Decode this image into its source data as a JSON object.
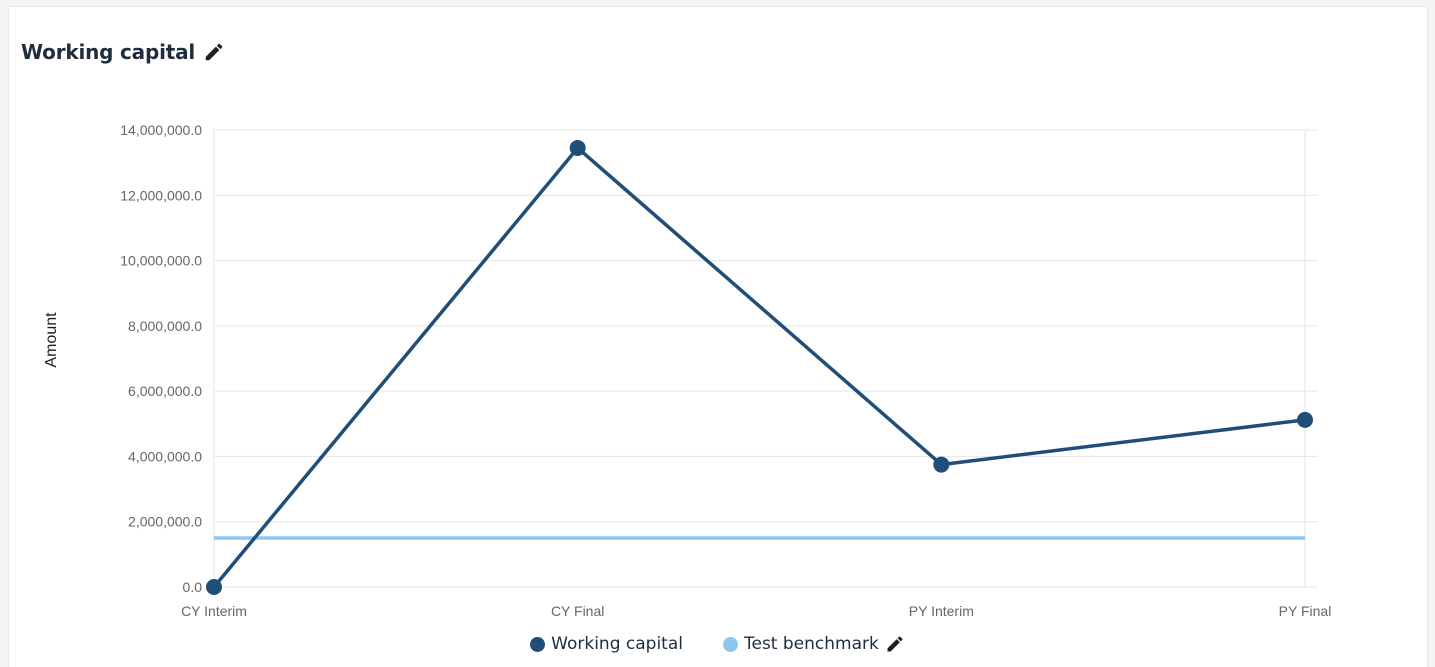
{
  "card": {
    "title": "Working capital",
    "edit_icon": "pencil-icon"
  },
  "legend": {
    "items": [
      {
        "label": "Working capital",
        "color": "#1f4e79"
      },
      {
        "label": "Test benchmark",
        "color": "#8ec6ef",
        "edit_icon": "pencil-icon"
      }
    ]
  },
  "chart_data": {
    "type": "line",
    "categories": [
      "CY Interim",
      "CY Final",
      "PY Interim",
      "PY Final"
    ],
    "series": [
      {
        "name": "Working capital",
        "color": "#1f4e79",
        "values": [
          0,
          13450000,
          3750000,
          5120000
        ]
      },
      {
        "name": "Test benchmark",
        "color": "#8ec6ef",
        "values": [
          1500000,
          1500000,
          1500000,
          1500000
        ]
      }
    ],
    "ylabel": "Amount",
    "xlabel": "",
    "ylim": [
      0,
      14000000
    ],
    "yticks": [
      0,
      2000000,
      4000000,
      6000000,
      8000000,
      10000000,
      12000000,
      14000000
    ],
    "ytick_labels": [
      "0.0",
      "2,000,000.0",
      "4,000,000.0",
      "6,000,000.0",
      "8,000,000.0",
      "10,000,000.0",
      "12,000,000.0",
      "14,000,000.0"
    ],
    "grid": true,
    "legend_position": "bottom"
  }
}
